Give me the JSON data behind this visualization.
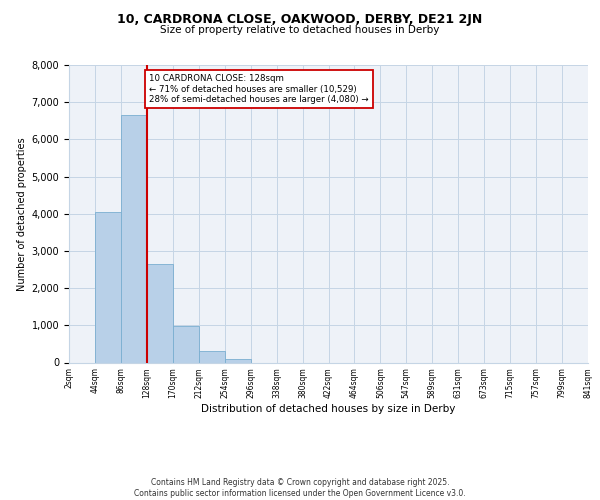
{
  "title_line1": "10, CARDRONA CLOSE, OAKWOOD, DERBY, DE21 2JN",
  "title_line2": "Size of property relative to detached houses in Derby",
  "xlabel": "Distribution of detached houses by size in Derby",
  "ylabel": "Number of detached properties",
  "bar_values": [
    0,
    4050,
    6650,
    2650,
    970,
    320,
    100,
    0,
    0,
    0,
    0,
    0,
    0,
    0,
    0,
    0,
    0,
    0,
    0,
    0
  ],
  "bin_labels": [
    "2sqm",
    "44sqm",
    "86sqm",
    "128sqm",
    "170sqm",
    "212sqm",
    "254sqm",
    "296sqm",
    "338sqm",
    "380sqm",
    "422sqm",
    "464sqm",
    "506sqm",
    "547sqm",
    "589sqm",
    "631sqm",
    "673sqm",
    "715sqm",
    "757sqm",
    "799sqm",
    "841sqm"
  ],
  "bar_color": "#b8d0e8",
  "bar_edge_color": "#7aaed0",
  "grid_color": "#c5d5e5",
  "background_color": "#eef2f8",
  "vline_x_idx": 3,
  "vline_color": "#cc0000",
  "annotation_text": "10 CARDRONA CLOSE: 128sqm\n← 71% of detached houses are smaller (10,529)\n28% of semi-detached houses are larger (4,080) →",
  "annotation_box_color": "#ffffff",
  "annotation_box_edge": "#cc0000",
  "ylim": [
    0,
    8000
  ],
  "yticks": [
    0,
    1000,
    2000,
    3000,
    4000,
    5000,
    6000,
    7000,
    8000
  ],
  "footer_text": "Contains HM Land Registry data © Crown copyright and database right 2025.\nContains public sector information licensed under the Open Government Licence v3.0.",
  "bin_edges": [
    2,
    44,
    86,
    128,
    170,
    212,
    254,
    296,
    338,
    380,
    422,
    464,
    506,
    547,
    589,
    631,
    673,
    715,
    757,
    799,
    841
  ]
}
